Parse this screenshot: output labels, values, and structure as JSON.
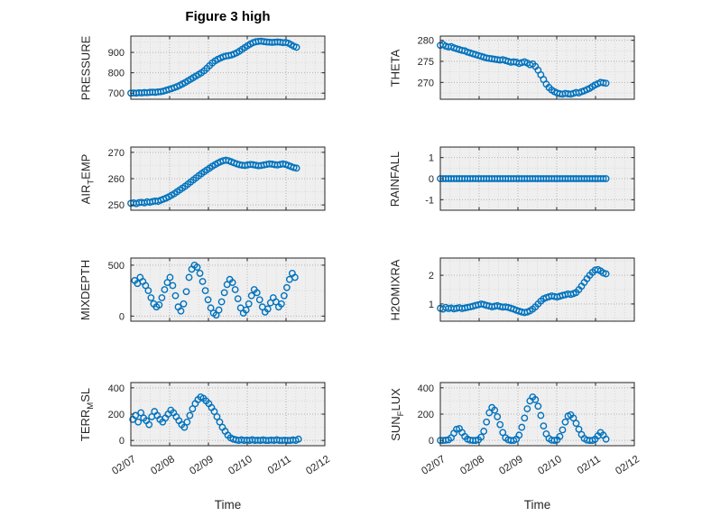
{
  "chart_data": {
    "type": "scatter",
    "title": "Figure 3 high",
    "xlabel": "Time",
    "xlim": [
      0,
      5
    ],
    "xtick_values": [
      0,
      1,
      2,
      3,
      4,
      5
    ],
    "xtick_labels": [
      "02/07",
      "02/08",
      "02/09",
      "02/10",
      "02/11",
      "02/12"
    ],
    "x_unit": "days since 02/07",
    "marker_color": "#0072BD",
    "grid": "on",
    "subplots": [
      {
        "name": "pressure",
        "ylabel": {
          "pre": "PRESSURE",
          "sub": "",
          "post": ""
        },
        "yticks": [
          700,
          800,
          900
        ],
        "ylim": [
          670,
          980
        ],
        "x_start": 0,
        "x_step": 0.07,
        "values": [
          700,
          701,
          700,
          702,
          701,
          703,
          702,
          704,
          705,
          704,
          706,
          707,
          710,
          714,
          718,
          722,
          727,
          732,
          738,
          745,
          752,
          760,
          768,
          776,
          784,
          792,
          800,
          810,
          822,
          835,
          848,
          858,
          866,
          872,
          878,
          882,
          884,
          887,
          892,
          898,
          906,
          915,
          924,
          933,
          941,
          948,
          952,
          954,
          955,
          953,
          951,
          950,
          949,
          950,
          951,
          950,
          948,
          949,
          945,
          938,
          930,
          925
        ]
      },
      {
        "name": "theta",
        "ylabel": {
          "pre": "THETA",
          "sub": "",
          "post": ""
        },
        "yticks": [
          270,
          275,
          280
        ],
        "ylim": [
          266,
          281
        ],
        "x_start": 0,
        "x_step": 0.07,
        "values": [
          278.8,
          279,
          278.6,
          278.4,
          278.5,
          278.2,
          278,
          277.8,
          277.6,
          277.5,
          277.2,
          277,
          276.8,
          276.6,
          276.4,
          276.2,
          276,
          275.8,
          275.7,
          275.6,
          275.5,
          275.4,
          275.3,
          275.4,
          275.2,
          275,
          274.8,
          274.9,
          274.8,
          274.5,
          274.7,
          274.9,
          274.6,
          274.2,
          274.4,
          273.8,
          272.9,
          271.8,
          270.7,
          269.6,
          268.8,
          268.2,
          267.8,
          267.5,
          267.3,
          267.2,
          267.4,
          267.3,
          267.2,
          267.4,
          267.6,
          267.5,
          267.8,
          268,
          268.3,
          268.6,
          269,
          269.4,
          269.7,
          270,
          269.9,
          269.8
        ]
      },
      {
        "name": "air-temp",
        "ylabel": {
          "pre": "AIR",
          "sub": "T",
          "post": "EMP"
        },
        "yticks": [
          250,
          260,
          270
        ],
        "ylim": [
          248,
          272
        ],
        "x_start": 0,
        "x_step": 0.07,
        "values": [
          250.6,
          250.8,
          250.5,
          250.9,
          251,
          250.8,
          251.2,
          251,
          251.3,
          251.5,
          251.4,
          251.8,
          252.2,
          252.6,
          253.1,
          253.7,
          254.3,
          255,
          255.7,
          256.4,
          257.1,
          257.9,
          258.7,
          259.5,
          260.3,
          261.1,
          261.9,
          262.6,
          263.3,
          264,
          264.7,
          265.3,
          265.9,
          266.4,
          266.8,
          267,
          266.8,
          266.4,
          266,
          265.6,
          265.3,
          265.1,
          265,
          265.2,
          265.4,
          265.3,
          265.1,
          264.9,
          265,
          265.2,
          265.4,
          265.6,
          265.5,
          265.3,
          265.2,
          265.4,
          265.6,
          265.4,
          265,
          264.6,
          264.2,
          264
        ]
      },
      {
        "name": "rainfall",
        "ylabel": {
          "pre": "RAINFALL",
          "sub": "",
          "post": ""
        },
        "yticks": [
          -1,
          0,
          1
        ],
        "ylim": [
          -1.5,
          1.5
        ],
        "x_start": 0,
        "x_step": 0.07,
        "values": [
          0,
          0,
          0,
          0,
          0,
          0,
          0,
          0,
          0,
          0,
          0,
          0,
          0,
          0,
          0,
          0,
          0,
          0,
          0,
          0,
          0,
          0,
          0,
          0,
          0,
          0,
          0,
          0,
          0,
          0,
          0,
          0,
          0,
          0,
          0,
          0,
          0,
          0,
          0,
          0,
          0,
          0,
          0,
          0,
          0,
          0,
          0,
          0,
          0,
          0,
          0,
          0,
          0,
          0,
          0,
          0,
          0,
          0,
          0,
          0,
          0,
          0
        ]
      },
      {
        "name": "mixdepth",
        "ylabel": {
          "pre": "MIXDEPTH",
          "sub": "",
          "post": ""
        },
        "yticks": [
          0,
          500
        ],
        "ylim": [
          -50,
          570
        ],
        "x_start": 0.1,
        "x_step": 0.07,
        "values": [
          350,
          320,
          380,
          340,
          300,
          250,
          180,
          120,
          90,
          110,
          180,
          260,
          330,
          380,
          300,
          200,
          90,
          50,
          120,
          240,
          380,
          460,
          500,
          480,
          420,
          340,
          250,
          160,
          80,
          30,
          10,
          60,
          140,
          230,
          310,
          360,
          330,
          260,
          170,
          80,
          30,
          60,
          120,
          200,
          260,
          230,
          160,
          90,
          40,
          70,
          130,
          180,
          140,
          90,
          120,
          200,
          280,
          360,
          420,
          380
        ]
      },
      {
        "name": "h2omixra",
        "ylabel": {
          "pre": "H2OMIXRA",
          "sub": "",
          "post": ""
        },
        "yticks": [
          1,
          2
        ],
        "ylim": [
          0.4,
          2.6
        ],
        "x_start": 0,
        "x_step": 0.07,
        "values": [
          0.85,
          0.82,
          0.88,
          0.84,
          0.86,
          0.83,
          0.85,
          0.87,
          0.84,
          0.86,
          0.88,
          0.9,
          0.92,
          0.95,
          0.97,
          1,
          0.98,
          0.95,
          0.93,
          0.9,
          0.92,
          0.94,
          0.91,
          0.89,
          0.9,
          0.88,
          0.85,
          0.82,
          0.78,
          0.75,
          0.72,
          0.7,
          0.72,
          0.76,
          0.82,
          0.9,
          1,
          1.1,
          1.18,
          1.22,
          1.25,
          1.28,
          1.26,
          1.24,
          1.27,
          1.3,
          1.32,
          1.35,
          1.33,
          1.36,
          1.4,
          1.5,
          1.62,
          1.75,
          1.88,
          2,
          2.1,
          2.18,
          2.2,
          2.15,
          2.08,
          2.05
        ]
      },
      {
        "name": "terr-msl",
        "ylabel": {
          "pre": "TERR",
          "sub": "M",
          "post": "SL"
        },
        "yticks": [
          0,
          200,
          400
        ],
        "ylim": [
          -40,
          440
        ],
        "x_start": 0.05,
        "x_step": 0.07,
        "values": [
          160,
          190,
          140,
          210,
          170,
          150,
          120,
          180,
          220,
          190,
          160,
          140,
          170,
          200,
          230,
          210,
          180,
          150,
          120,
          100,
          140,
          190,
          240,
          280,
          310,
          330,
          320,
          300,
          280,
          250,
          220,
          180,
          140,
          100,
          70,
          40,
          20,
          10,
          5,
          0,
          5,
          0,
          3,
          0,
          5,
          0,
          2,
          0,
          4,
          0,
          0,
          3,
          0,
          5,
          0,
          0,
          2,
          0,
          0,
          4,
          0,
          10
        ]
      },
      {
        "name": "sun-flux",
        "ylabel": {
          "pre": "SUN",
          "sub": "F",
          "post": "LUX"
        },
        "yticks": [
          0,
          200,
          400
        ],
        "ylim": [
          -40,
          440
        ],
        "x_start": 0,
        "x_step": 0.07,
        "values": [
          0,
          0,
          2,
          5,
          20,
          55,
          85,
          90,
          60,
          30,
          10,
          2,
          0,
          0,
          5,
          25,
          70,
          140,
          210,
          250,
          230,
          180,
          120,
          60,
          20,
          5,
          0,
          0,
          10,
          40,
          100,
          170,
          240,
          300,
          330,
          310,
          260,
          190,
          110,
          50,
          15,
          2,
          0,
          5,
          30,
          80,
          140,
          185,
          195,
          170,
          130,
          85,
          45,
          15,
          3,
          0,
          0,
          10,
          35,
          60,
          40,
          10
        ]
      }
    ]
  }
}
